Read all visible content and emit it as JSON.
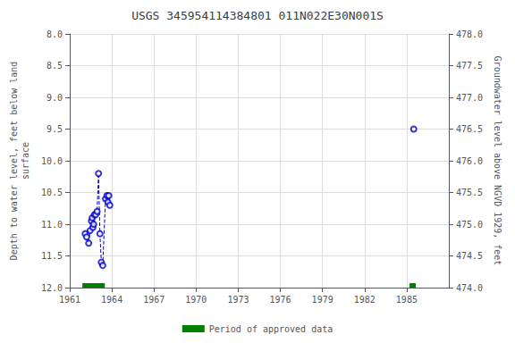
{
  "chart_data": {
    "type": "line",
    "title": "USGS 345954114384801 011N022E30N001S",
    "ylabel": "Depth to water level, feet below land\nsurface",
    "y2label": "Groundwater level above NGVD 1929, feet",
    "xlim": [
      1961,
      1988
    ],
    "xticks": [
      1961,
      1964,
      1967,
      1970,
      1973,
      1976,
      1979,
      1982,
      1985
    ],
    "ylim": [
      12.0,
      8.0
    ],
    "yticks": [
      {
        "value": 8.0,
        "label": "8.0"
      },
      {
        "value": 8.5,
        "label": "8.5"
      },
      {
        "value": 9.0,
        "label": "9.0"
      },
      {
        "value": 9.5,
        "label": "9.5"
      },
      {
        "value": 10.0,
        "label": "10.0"
      },
      {
        "value": 10.5,
        "label": "10.5"
      },
      {
        "value": 11.0,
        "label": "11.0"
      },
      {
        "value": 11.5,
        "label": "11.5"
      },
      {
        "value": 12.0,
        "label": "12.0"
      }
    ],
    "y2lim": [
      474.0,
      478.0
    ],
    "y2ticks": [
      {
        "value": 478.0,
        "label": "478.0"
      },
      {
        "value": 477.5,
        "label": "477.5"
      },
      {
        "value": 477.0,
        "label": "477.0"
      },
      {
        "value": 476.5,
        "label": "476.5"
      },
      {
        "value": 476.0,
        "label": "476.0"
      },
      {
        "value": 475.5,
        "label": "475.5"
      },
      {
        "value": 475.0,
        "label": "475.0"
      },
      {
        "value": 474.5,
        "label": "474.5"
      },
      {
        "value": 474.0,
        "label": "474.0"
      }
    ],
    "grid": true,
    "series": [
      {
        "type": "line",
        "line_style": "dashed",
        "marker": "none",
        "color": "#0000cc",
        "x": [
          1962.1,
          1962.2,
          1962.35,
          1962.45,
          1962.55,
          1962.6,
          1962.65,
          1962.7,
          1962.75,
          1962.85,
          1962.95,
          1963.05,
          1963.15,
          1963.25,
          1963.35,
          1963.55,
          1963.65,
          1963.72,
          1963.78,
          1963.85
        ],
        "values": [
          11.15,
          11.2,
          11.3,
          11.1,
          10.95,
          10.9,
          11.05,
          11.0,
          10.85,
          10.85,
          10.8,
          10.2,
          11.15,
          11.6,
          11.65,
          10.6,
          10.55,
          10.65,
          10.55,
          10.7
        ]
      },
      {
        "type": "scatter",
        "marker": "open circle",
        "color": "#0000cc",
        "x": [
          1962.1,
          1962.2,
          1962.35,
          1962.45,
          1962.55,
          1962.6,
          1962.65,
          1962.7,
          1962.75,
          1962.85,
          1962.95,
          1963.05,
          1963.15,
          1963.25,
          1963.35,
          1963.55,
          1963.65,
          1963.72,
          1963.78,
          1963.85,
          1985.5
        ],
        "values": [
          11.15,
          11.2,
          11.3,
          11.1,
          10.95,
          10.9,
          11.05,
          11.0,
          10.85,
          10.85,
          10.8,
          10.2,
          11.15,
          11.6,
          11.65,
          10.6,
          10.55,
          10.65,
          10.55,
          10.7,
          9.5
        ]
      },
      {
        "type": "period",
        "name": "Period of approved data",
        "color": "#008000",
        "ranges": [
          [
            1961.9,
            1963.5
          ],
          [
            1985.2,
            1985.65
          ]
        ]
      }
    ]
  }
}
